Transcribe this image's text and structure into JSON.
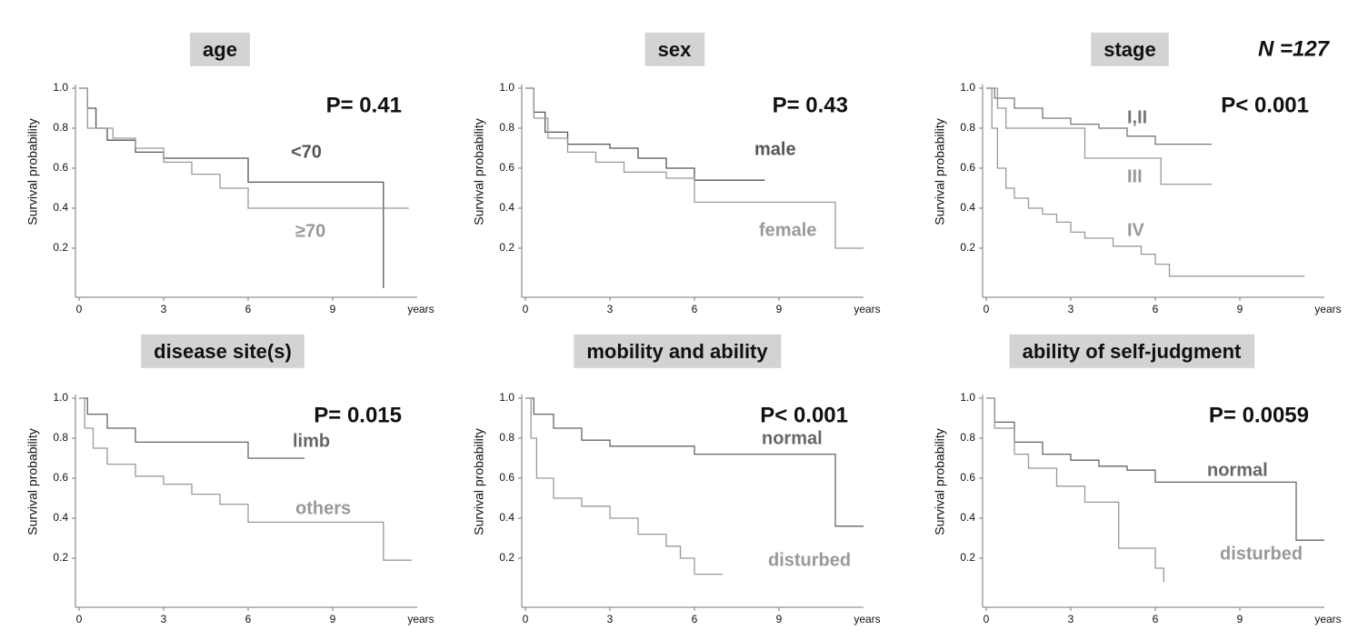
{
  "chart_data": [
    {
      "type": "step",
      "title": "age",
      "annotation": "P= 0.41",
      "ylabel": "Survival probability",
      "xlabel": "years",
      "xlim": [
        0,
        12
      ],
      "ylim": [
        0,
        1
      ],
      "xticks": [
        0,
        3,
        6,
        9
      ],
      "yticks": [
        {
          "value": 0.2,
          "label": "0.2"
        },
        {
          "value": 0.4,
          "label": "0.4"
        },
        {
          "value": 0.6,
          "label": "0.6"
        },
        {
          "value": 0.8,
          "label": "0.8"
        },
        {
          "value": 1,
          "label": "1.0"
        }
      ],
      "series": [
        {
          "name": "<70",
          "color": "#555555",
          "x": [
            0,
            0.3,
            0.6,
            1,
            2,
            3,
            6,
            10.8
          ],
          "values": [
            1,
            0.9,
            0.8,
            0.74,
            0.68,
            0.65,
            0.53,
            0
          ]
        },
        {
          "name": "≥70",
          "color": "#999999",
          "x": [
            0,
            0.3,
            1.2,
            2,
            3,
            4,
            5,
            6,
            11.7
          ],
          "values": [
            1,
            0.8,
            0.75,
            0.7,
            0.63,
            0.57,
            0.5,
            0.4,
            0.4
          ]
        }
      ]
    },
    {
      "type": "step",
      "title": "sex",
      "annotation": "P= 0.43",
      "ylabel": "Survival probability",
      "xlabel": "years",
      "xlim": [
        0,
        12
      ],
      "ylim": [
        0,
        1
      ],
      "xticks": [
        0,
        3,
        6,
        9
      ],
      "yticks": [
        {
          "value": 0.2,
          "label": "0.2"
        },
        {
          "value": 0.4,
          "label": "0.4"
        },
        {
          "value": 0.6,
          "label": "0.6"
        },
        {
          "value": 0.8,
          "label": "0.8"
        },
        {
          "value": 1,
          "label": "1.0"
        }
      ],
      "series": [
        {
          "name": "male",
          "color": "#555555",
          "x": [
            0,
            0.3,
            0.7,
            1.5,
            3,
            4,
            5,
            6,
            8.5
          ],
          "values": [
            1,
            0.88,
            0.78,
            0.72,
            0.7,
            0.65,
            0.6,
            0.54,
            0.54
          ]
        },
        {
          "name": "female",
          "color": "#999999",
          "x": [
            0,
            0.3,
            0.8,
            1.5,
            2.5,
            3.5,
            5,
            6,
            11,
            12
          ],
          "values": [
            1,
            0.85,
            0.75,
            0.68,
            0.63,
            0.58,
            0.55,
            0.43,
            0.2,
            0.2
          ]
        }
      ]
    },
    {
      "type": "step",
      "title": "stage",
      "annotation": "P< 0.001",
      "note": "N =127",
      "ylabel": "Survival probability",
      "xlabel": "years",
      "xlim": [
        0,
        12
      ],
      "ylim": [
        0,
        1
      ],
      "xticks": [
        0,
        3,
        6,
        9
      ],
      "yticks": [
        {
          "value": 0.2,
          "label": "0.2"
        },
        {
          "value": 0.4,
          "label": "0.4"
        },
        {
          "value": 0.6,
          "label": "0.6"
        },
        {
          "value": 0.8,
          "label": "0.8"
        },
        {
          "value": 1,
          "label": "1.0"
        }
      ],
      "series": [
        {
          "name": "I,II",
          "color": "#777777",
          "x": [
            0,
            0.3,
            1,
            2,
            3,
            4,
            5,
            6,
            8
          ],
          "values": [
            1,
            0.95,
            0.9,
            0.85,
            0.82,
            0.8,
            0.76,
            0.72,
            0.72
          ]
        },
        {
          "name": "III",
          "color": "#999999",
          "x": [
            0,
            0.4,
            0.7,
            3.5,
            6.2,
            8
          ],
          "values": [
            1,
            0.9,
            0.8,
            0.65,
            0.52,
            0.52
          ]
        },
        {
          "name": "IV",
          "color": "#999999",
          "x": [
            0,
            0.2,
            0.4,
            0.7,
            1,
            1.5,
            2,
            2.5,
            3,
            3.5,
            4.5,
            5.5,
            6,
            6.5,
            11.3
          ],
          "values": [
            1,
            0.8,
            0.6,
            0.5,
            0.45,
            0.4,
            0.37,
            0.33,
            0.28,
            0.25,
            0.21,
            0.17,
            0.12,
            0.06,
            0.06
          ]
        }
      ]
    },
    {
      "type": "step",
      "title": "disease site(s)",
      "annotation": "P= 0.015",
      "ylabel": "Survival probability",
      "xlabel": "years",
      "xlim": [
        0,
        12
      ],
      "ylim": [
        0,
        1
      ],
      "xticks": [
        0,
        3,
        6,
        9
      ],
      "yticks": [
        {
          "value": 0.2,
          "label": "0.2"
        },
        {
          "value": 0.4,
          "label": "0.4"
        },
        {
          "value": 0.6,
          "label": "0.6"
        },
        {
          "value": 0.8,
          "label": "0.8"
        },
        {
          "value": 1,
          "label": "1.0"
        }
      ],
      "series": [
        {
          "name": "limb",
          "color": "#666666",
          "x": [
            0,
            0.3,
            1,
            2,
            6,
            8
          ],
          "values": [
            1,
            0.92,
            0.85,
            0.78,
            0.7,
            0.7
          ]
        },
        {
          "name": "others",
          "color": "#999999",
          "x": [
            0,
            0.2,
            0.5,
            1,
            2,
            3,
            4,
            5,
            6,
            10.8,
            11.8
          ],
          "values": [
            1,
            0.85,
            0.75,
            0.67,
            0.61,
            0.57,
            0.52,
            0.47,
            0.38,
            0.19,
            0.19
          ]
        }
      ]
    },
    {
      "type": "step",
      "title": "mobility and ability",
      "annotation": "P< 0.001",
      "ylabel": "Survival probability",
      "xlabel": "years",
      "xlim": [
        0,
        12
      ],
      "ylim": [
        0,
        1
      ],
      "xticks": [
        0,
        3,
        6,
        9
      ],
      "yticks": [
        {
          "value": 0.2,
          "label": "0.2"
        },
        {
          "value": 0.4,
          "label": "0.4"
        },
        {
          "value": 0.6,
          "label": "0.6"
        },
        {
          "value": 0.8,
          "label": "0.8"
        },
        {
          "value": 1,
          "label": "1.0"
        }
      ],
      "series": [
        {
          "name": "normal",
          "color": "#666666",
          "x": [
            0,
            0.3,
            1,
            2,
            3,
            6,
            11,
            12
          ],
          "values": [
            1,
            0.92,
            0.85,
            0.79,
            0.76,
            0.72,
            0.36,
            0.36
          ]
        },
        {
          "name": "disturbed",
          "color": "#999999",
          "x": [
            0,
            0.2,
            0.4,
            1,
            2,
            3,
            4,
            5,
            5.5,
            6,
            7
          ],
          "values": [
            1,
            0.8,
            0.6,
            0.5,
            0.46,
            0.4,
            0.32,
            0.26,
            0.2,
            0.12,
            0.12
          ]
        }
      ]
    },
    {
      "type": "step",
      "title": "ability of self-judgment",
      "annotation": "P= 0.0059",
      "ylabel": "Survival probability",
      "xlabel": "years",
      "xlim": [
        0,
        12
      ],
      "ylim": [
        0,
        1
      ],
      "xticks": [
        0,
        3,
        6,
        9
      ],
      "yticks": [
        {
          "value": 0.2,
          "label": "0.2"
        },
        {
          "value": 0.4,
          "label": "0.4"
        },
        {
          "value": 0.6,
          "label": "0.6"
        },
        {
          "value": 0.8,
          "label": "0.8"
        },
        {
          "value": 1,
          "label": "1.0"
        }
      ],
      "series": [
        {
          "name": "normal",
          "color": "#666666",
          "x": [
            0,
            0.3,
            1,
            2,
            3,
            4,
            5,
            6,
            11,
            12
          ],
          "values": [
            1,
            0.88,
            0.78,
            0.72,
            0.69,
            0.66,
            0.64,
            0.58,
            0.29,
            0.29
          ]
        },
        {
          "name": "disturbed",
          "color": "#999999",
          "x": [
            0,
            0.3,
            1,
            1.5,
            2.5,
            3.5,
            4.7,
            6,
            6.3
          ],
          "values": [
            1,
            0.85,
            0.72,
            0.65,
            0.56,
            0.48,
            0.25,
            0.15,
            0.08
          ]
        }
      ]
    }
  ]
}
